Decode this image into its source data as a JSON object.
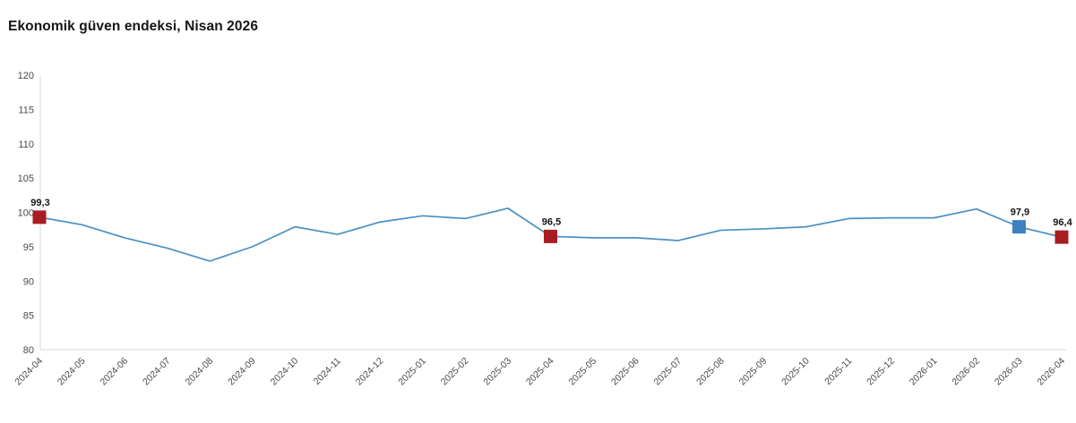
{
  "page": {
    "title": "Ekonomik güven endeksi, Nisan 2026"
  },
  "chart_data": {
    "type": "line",
    "title": "Ekonomik güven endeksi, Nisan 2026",
    "x": [
      "2024-04",
      "2024-05",
      "2024-06",
      "2024-07",
      "2024-08",
      "2024-09",
      "2024-10",
      "2024-11",
      "2024-12",
      "2025-01",
      "2025-02",
      "2025-03",
      "2025-04",
      "2025-05",
      "2025-06",
      "2025-07",
      "2025-08",
      "2025-09",
      "2025-10",
      "2025-11",
      "2025-12",
      "2026-01",
      "2026-02",
      "2026-03",
      "2026-04"
    ],
    "series": [
      {
        "name": "Ekonomik güven endeksi",
        "values": [
          99.3,
          98.2,
          96.3,
          94.8,
          92.9,
          95.0,
          97.9,
          96.8,
          98.6,
          99.5,
          99.1,
          100.6,
          96.5,
          96.3,
          96.3,
          95.9,
          97.4,
          97.6,
          97.9,
          99.1,
          99.2,
          99.2,
          100.5,
          97.9,
          96.4
        ]
      }
    ],
    "ylim": [
      80,
      120
    ],
    "ytick_step": 5,
    "yticks": [
      80,
      85,
      90,
      95,
      100,
      105,
      110,
      115,
      120
    ],
    "grid": false,
    "legend": "none",
    "colors": {
      "line": "#4a90c2",
      "marker_red": "#a81d22",
      "marker_blue": "#3c82c0",
      "axis": "#d3dae3",
      "tick_text": "#4a4a4a",
      "label_text": "#141414"
    },
    "highlights": [
      {
        "x": "2024-04",
        "label": "99,3",
        "color": "marker_red"
      },
      {
        "x": "2025-04",
        "label": "96,5",
        "color": "marker_red"
      },
      {
        "x": "2026-03",
        "label": "97,9",
        "color": "marker_blue"
      },
      {
        "x": "2026-04",
        "label": "96,4",
        "color": "marker_red"
      }
    ]
  }
}
